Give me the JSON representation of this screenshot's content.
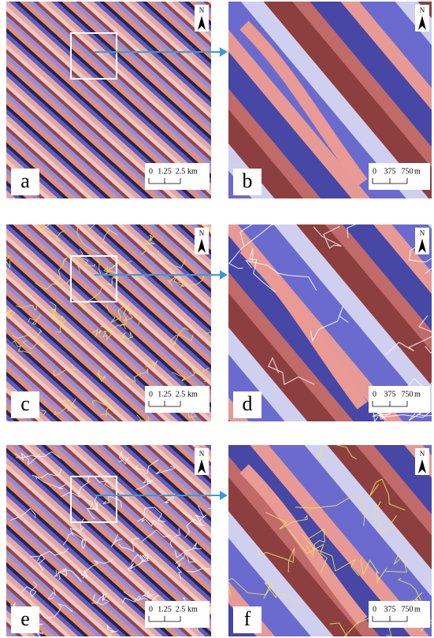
{
  "panels": [
    {
      "label": "a",
      "north": "N",
      "scale": {
        "ticks": [
          "0",
          "1.25",
          "2.5"
        ],
        "unit": "km"
      }
    },
    {
      "label": "b",
      "north": "N",
      "scale": {
        "ticks": [
          "0",
          "375",
          "750"
        ],
        "unit": "m"
      }
    },
    {
      "label": "c",
      "north": "N",
      "scale": {
        "ticks": [
          "0",
          "1.25",
          "2.5"
        ],
        "unit": "km"
      }
    },
    {
      "label": "d",
      "north": "N",
      "scale": {
        "ticks": [
          "0",
          "375",
          "750"
        ],
        "unit": "m"
      }
    },
    {
      "label": "e",
      "north": "N",
      "scale": {
        "ticks": [
          "0",
          "1.25",
          "2.5"
        ],
        "unit": "km"
      }
    },
    {
      "label": "f",
      "north": "N",
      "scale": {
        "ticks": [
          "0",
          "375",
          "750"
        ],
        "unit": "m"
      }
    }
  ]
}
